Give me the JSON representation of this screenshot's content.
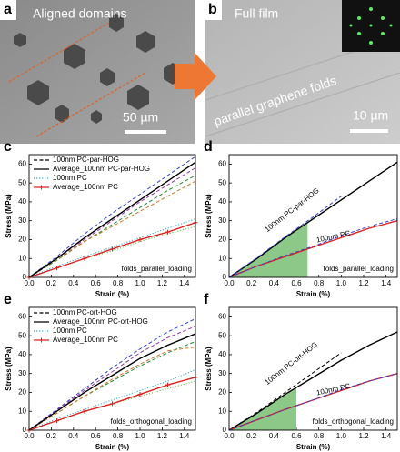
{
  "panels": [
    {
      "label": "a",
      "caption": "Aligned domains",
      "scale": "50 µm"
    },
    {
      "label": "b",
      "caption": "Full film",
      "note": "parallel graphene folds",
      "scale": "10 µm"
    }
  ],
  "chart_data": [
    {
      "type": "line",
      "panel_label": "c",
      "xlabel": "Strain (%)",
      "ylabel": "Stress (MPa)",
      "xlim": [
        0,
        1.5
      ],
      "ylim": [
        0,
        65
      ],
      "xticks": [
        {
          "value": 0,
          "label": "0.0"
        },
        0.2,
        0.4,
        0.6,
        0.8,
        {
          "value": 1,
          "label": "1.0"
        },
        1.2,
        1.4
      ],
      "yticks": [
        0,
        10,
        20,
        30,
        40,
        50,
        60
      ],
      "x": [
        0,
        0.25,
        0.5,
        0.75,
        1,
        1.25,
        1.5
      ],
      "series": [
        {
          "name": "100nm PC-par-HOG",
          "color": "#000000",
          "style": "dashed",
          "samples": [
            {
              "color": "#3344cc",
              "values": [
                0,
                11,
                23,
                34,
                44,
                54,
                64
              ]
            },
            {
              "color": "#228833",
              "values": [
                0,
                9,
                19,
                28,
                37,
                46,
                54
              ]
            },
            {
              "color": "#9933aa",
              "values": [
                0,
                10,
                20,
                30,
                40,
                49,
                58
              ]
            },
            {
              "color": "#cc7722",
              "values": [
                0,
                9.5,
                19,
                27,
                35,
                43,
                51
              ]
            }
          ]
        },
        {
          "name": "Average_100nm PC-par-HOG",
          "color": "#000000",
          "style": "solid",
          "values": [
            0,
            10,
            21,
            31,
            41,
            51,
            61
          ]
        },
        {
          "name": "100nm PC",
          "color": "#33aacc",
          "style": "dotted",
          "samples": [
            {
              "color": "#33aacc",
              "values": [
                0,
                6,
                11,
                16,
                21,
                26,
                31
              ]
            },
            {
              "color": "#66bb44",
              "values": [
                0,
                5,
                10,
                14,
                19,
                23,
                27
              ]
            }
          ]
        },
        {
          "name": "Average_100nm PC",
          "color": "#dd2222",
          "style": "solid",
          "marker": "plus",
          "values": [
            0,
            5,
            10,
            15,
            20,
            24,
            29
          ]
        }
      ],
      "annotation": "folds_parallel_loading"
    },
    {
      "type": "line",
      "panel_label": "d",
      "xlabel": "Strain (%)",
      "ylabel": "Stress (MPa)",
      "xlim": [
        0,
        1.5
      ],
      "ylim": [
        0,
        65
      ],
      "xticks": [
        {
          "value": 0,
          "label": "0.0"
        },
        0.2,
        0.4,
        0.6,
        0.8,
        {
          "value": 1,
          "label": "1.0"
        },
        1.2,
        1.4
      ],
      "yticks": [
        0,
        10,
        20,
        30,
        40,
        50,
        60
      ],
      "x": [
        0,
        0.25,
        0.5,
        0.75,
        1,
        1.25,
        1.5
      ],
      "series": [
        {
          "color": "#000000",
          "style": "solid",
          "values": [
            0,
            10,
            21,
            31,
            41,
            51,
            61
          ],
          "fill": "#8cc888",
          "fill_xlim": [
            0,
            0.7
          ]
        },
        {
          "color": "#3344cc",
          "style": "dashed",
          "values": [
            0,
            10.5,
            21.5,
            32,
            43,
            null,
            null
          ]
        },
        {
          "color": "#dd2222",
          "style": "solid",
          "values": [
            0,
            6,
            11,
            16,
            21,
            26,
            30
          ]
        },
        {
          "color": "#3344cc",
          "style": "dashed",
          "values": [
            0,
            6,
            11.5,
            16.5,
            22,
            27,
            31
          ]
        }
      ],
      "curve_labels": [
        "100nm PC-par-HOG",
        "100nm PC"
      ],
      "annotation": "folds_parallel_loading"
    },
    {
      "type": "line",
      "panel_label": "e",
      "xlabel": "Strain (%)",
      "ylabel": "Stress (MPa)",
      "xlim": [
        0,
        1.5
      ],
      "ylim": [
        0,
        65
      ],
      "xticks": [
        {
          "value": 0,
          "label": "0.0"
        },
        0.2,
        0.4,
        0.6,
        0.8,
        {
          "value": 1,
          "label": "1.0"
        },
        1.2,
        1.4
      ],
      "yticks": [
        0,
        10,
        20,
        30,
        40,
        50,
        60
      ],
      "x": [
        0,
        0.25,
        0.5,
        0.75,
        1,
        1.25,
        1.5
      ],
      "series": [
        {
          "name": "100nm PC-ort-HOG",
          "color": "#000000",
          "style": "dashed",
          "samples": [
            {
              "color": "#3344cc",
              "values": [
                0,
                11,
                22,
                33,
                43,
                52,
                59
              ]
            },
            {
              "color": "#228833",
              "values": [
                0,
                9,
                18,
                26,
                34,
                41,
                47
              ]
            },
            {
              "color": "#9933aa",
              "values": [
                0,
                10.5,
                21,
                31,
                41,
                49,
                55
              ]
            },
            {
              "color": "#cc7722",
              "values": [
                0,
                9,
                18,
                27,
                35,
                42,
                44
              ]
            }
          ]
        },
        {
          "name": "Average_100nm PC-ort-HOG",
          "color": "#000000",
          "style": "solid",
          "values": [
            0,
            10,
            20,
            29,
            38,
            45,
            51
          ]
        },
        {
          "name": "100nm PC",
          "color": "#33aacc",
          "style": "dotted",
          "samples": [
            {
              "color": "#33aacc",
              "values": [
                0,
                6,
                11,
                16,
                21,
                26,
                32
              ]
            },
            {
              "color": "#66bb44",
              "values": [
                0,
                5,
                10,
                14,
                18,
                22,
                26
              ]
            }
          ]
        },
        {
          "name": "Average_100nm PC",
          "color": "#dd2222",
          "style": "solid",
          "marker": "plus",
          "values": [
            0,
            5,
            10,
            14,
            19,
            24,
            28
          ]
        }
      ],
      "annotation": "folds_orthogonal_loading"
    },
    {
      "type": "line",
      "panel_label": "f",
      "xlabel": "Strain (%)",
      "ylabel": "Stress (MPa)",
      "xlim": [
        0,
        1.5
      ],
      "ylim": [
        0,
        65
      ],
      "xticks": [
        {
          "value": 0,
          "label": "0.0"
        },
        0.2,
        0.4,
        0.6,
        0.8,
        {
          "value": 1,
          "label": "1.0"
        },
        1.2,
        1.4
      ],
      "yticks": [
        0,
        10,
        20,
        30,
        40,
        50,
        60
      ],
      "x": [
        0,
        0.25,
        0.5,
        0.75,
        1,
        1.25,
        1.5
      ],
      "series": [
        {
          "color": "#000000",
          "style": "solid",
          "values": [
            0,
            9,
            19,
            28,
            37,
            45,
            52
          ],
          "fill": "#8cc888",
          "fill_xlim": [
            0,
            0.6
          ]
        },
        {
          "color": "#000000",
          "style": "dashed",
          "values": [
            0,
            9.5,
            20,
            30.5,
            41,
            null,
            null
          ]
        },
        {
          "color": "#dd2222",
          "style": "solid",
          "values": [
            0,
            5.5,
            11,
            16,
            21,
            26,
            30
          ]
        },
        {
          "color": "#3344cc",
          "style": "dashed",
          "values": [
            0,
            5.5,
            11,
            16,
            21.5,
            26,
            30
          ]
        }
      ],
      "curve_labels": [
        "100nm PC-ort-HOG",
        "100nm PC"
      ],
      "annotation": "folds_orthogonal_loading"
    }
  ]
}
